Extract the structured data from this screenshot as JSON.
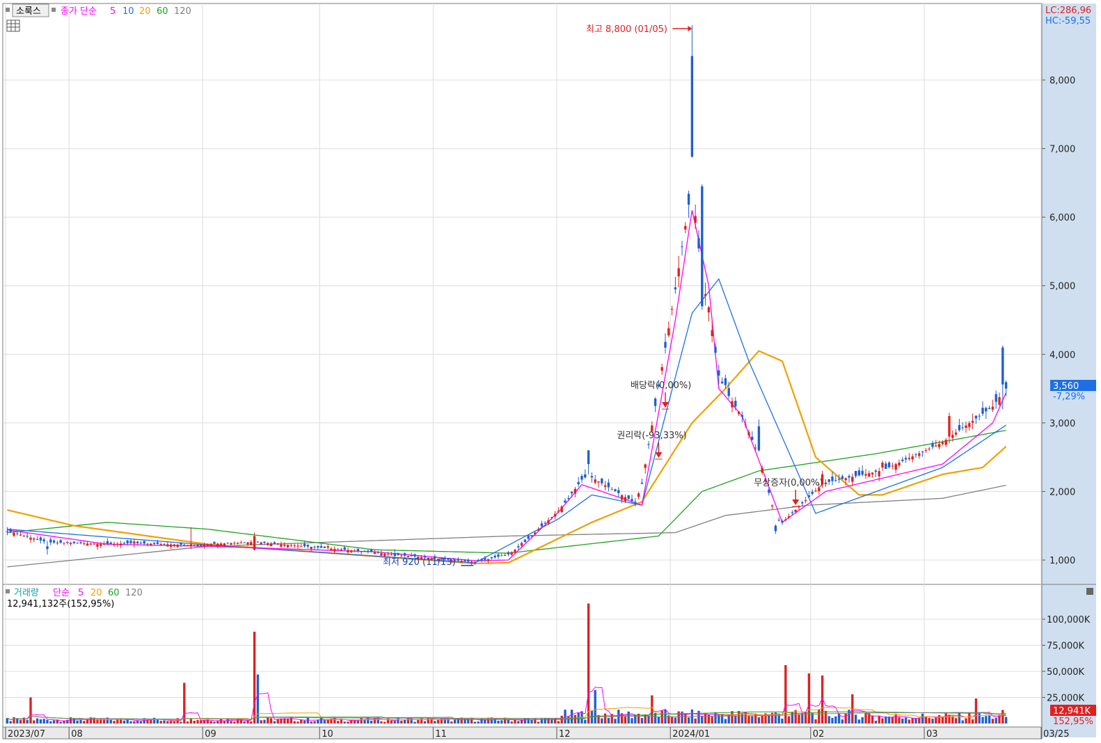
{
  "chart_data": {
    "type": "candlestick",
    "symbol_button": "소룩스",
    "legend": {
      "price_label": "종가 단순",
      "ma_periods": [
        "5",
        "10",
        "20",
        "60",
        "120"
      ],
      "ma_colors": [
        "#ff00ff",
        "#1e6fe6",
        "#f0a000",
        "#1fa31f",
        "#808080"
      ]
    },
    "lc_label": "LC:286,96",
    "hc_label": "HC:-59,55",
    "y_ticks": [
      {
        "value": 1000,
        "label": "1,000"
      },
      {
        "value": 2000,
        "label": "2,000"
      },
      {
        "value": 3000,
        "label": "3,000"
      },
      {
        "value": 4000,
        "label": "4,000"
      },
      {
        "value": 5000,
        "label": "5,000"
      },
      {
        "value": 6000,
        "label": "6,000"
      },
      {
        "value": 7000,
        "label": "7,000"
      },
      {
        "value": 8000,
        "label": "8,000"
      }
    ],
    "current_price": {
      "value": 3560,
      "label": "3,560",
      "change": "-7,29%"
    },
    "annotations": {
      "high": {
        "label": "최고 8,800 (01/05)",
        "value": 8800
      },
      "low": {
        "label": "최저 920 (11/13)",
        "value": 920
      },
      "events": [
        {
          "label": "배당락(0,00%)",
          "bar": 197
        },
        {
          "label": "권리락(-93,33%)",
          "bar": 195
        },
        {
          "label": "무상증자(0,00%)",
          "bar": 236
        }
      ]
    },
    "x_labels": [
      "2023/07",
      "08",
      "09",
      "10",
      "11",
      "12",
      "2024/01",
      "02",
      "03",
      "03/25"
    ],
    "x_label_bars": [
      0,
      19,
      59,
      94,
      128,
      165,
      199,
      241,
      275,
      310
    ],
    "bar_count": 300,
    "candles": [
      {
        "i": 0,
        "o": 1420,
        "h": 1480,
        "l": 1360,
        "c": 1410
      },
      {
        "i": 12,
        "o": 1200,
        "h": 1280,
        "l": 1080,
        "c": 1160
      },
      {
        "i": 38,
        "o": 1240,
        "h": 1310,
        "l": 1180,
        "c": 1270
      },
      {
        "i": 55,
        "o": 1200,
        "h": 1480,
        "l": 1160,
        "c": 1230
      },
      {
        "i": 74,
        "o": 1150,
        "h": 1400,
        "l": 1140,
        "c": 1350
      },
      {
        "i": 96,
        "o": 1180,
        "h": 1230,
        "l": 1150,
        "c": 1200
      },
      {
        "i": 116,
        "o": 1100,
        "h": 1160,
        "l": 1040,
        "c": 1060
      },
      {
        "i": 140,
        "o": 960,
        "h": 990,
        "l": 930,
        "c": 950
      },
      {
        "i": 154,
        "o": 1210,
        "h": 1270,
        "l": 1180,
        "c": 1250
      },
      {
        "i": 166,
        "o": 1700,
        "h": 1800,
        "l": 1680,
        "c": 1780
      },
      {
        "i": 174,
        "o": 2600,
        "h": 2600,
        "l": 2250,
        "c": 2400
      },
      {
        "i": 188,
        "o": 1850,
        "h": 1900,
        "l": 1780,
        "c": 1830
      },
      {
        "i": 205,
        "o": 8350,
        "h": 8800,
        "l": 6870,
        "c": 6880
      },
      {
        "i": 208,
        "o": 6450,
        "h": 6480,
        "l": 4650,
        "c": 4700
      },
      {
        "i": 215,
        "o": 3650,
        "h": 3700,
        "l": 3500,
        "c": 3550
      },
      {
        "i": 225,
        "o": 2950,
        "h": 3050,
        "l": 2580,
        "c": 2600
      },
      {
        "i": 230,
        "o": 1500,
        "h": 1520,
        "l": 1380,
        "c": 1420
      },
      {
        "i": 244,
        "o": 2100,
        "h": 2300,
        "l": 2050,
        "c": 2250
      },
      {
        "i": 262,
        "o": 2350,
        "h": 2450,
        "l": 2300,
        "c": 2420
      },
      {
        "i": 282,
        "o": 2800,
        "h": 3150,
        "l": 2700,
        "c": 3100
      },
      {
        "i": 298,
        "o": 4100,
        "h": 4130,
        "l": 3200,
        "c": 3560
      }
    ],
    "ma_keypoints": {
      "ma5": [
        [
          0,
          1440
        ],
        [
          30,
          1230
        ],
        [
          60,
          1200
        ],
        [
          110,
          1120
        ],
        [
          140,
          990
        ],
        [
          150,
          1000
        ],
        [
          165,
          1700
        ],
        [
          172,
          2100
        ],
        [
          190,
          1800
        ],
        [
          200,
          4500
        ],
        [
          205,
          6100
        ],
        [
          210,
          5000
        ],
        [
          213,
          3500
        ],
        [
          220,
          3100
        ],
        [
          232,
          1550
        ],
        [
          245,
          2000
        ],
        [
          280,
          2400
        ],
        [
          295,
          3000
        ],
        [
          300,
          3550
        ]
      ],
      "ma10": [
        [
          0,
          1450
        ],
        [
          60,
          1220
        ],
        [
          140,
          960
        ],
        [
          165,
          1600
        ],
        [
          175,
          1950
        ],
        [
          190,
          1800
        ],
        [
          205,
          4600
        ],
        [
          213,
          5100
        ],
        [
          222,
          3900
        ],
        [
          242,
          1680
        ],
        [
          280,
          2350
        ],
        [
          300,
          3000
        ]
      ],
      "ma20": [
        [
          0,
          1730
        ],
        [
          20,
          1500
        ],
        [
          60,
          1230
        ],
        [
          140,
          950
        ],
        [
          150,
          960
        ],
        [
          175,
          1550
        ],
        [
          190,
          1850
        ],
        [
          205,
          3000
        ],
        [
          215,
          3500
        ],
        [
          225,
          4050
        ],
        [
          232,
          3900
        ],
        [
          242,
          2500
        ],
        [
          255,
          1950
        ],
        [
          262,
          1950
        ],
        [
          280,
          2250
        ],
        [
          292,
          2350
        ],
        [
          300,
          2700
        ]
      ],
      "ma60": [
        [
          0,
          1400
        ],
        [
          30,
          1550
        ],
        [
          60,
          1450
        ],
        [
          110,
          1150
        ],
        [
          150,
          1100
        ],
        [
          195,
          1350
        ],
        [
          208,
          2000
        ],
        [
          225,
          2300
        ],
        [
          260,
          2550
        ],
        [
          300,
          2900
        ]
      ],
      "ma120": [
        [
          0,
          900
        ],
        [
          60,
          1200
        ],
        [
          150,
          1350
        ],
        [
          200,
          1400
        ],
        [
          215,
          1650
        ],
        [
          240,
          1800
        ],
        [
          280,
          1900
        ],
        [
          300,
          2100
        ]
      ]
    },
    "volume": {
      "label": "거래량",
      "ma_label": "단순",
      "ma_periods": [
        "5",
        "20",
        "60",
        "120"
      ],
      "summary": "12,941,132주(152,95%)",
      "current_label": "12,941K",
      "current_pct": "152,95%",
      "y_ticks": [
        {
          "value": 25000,
          "label": "25,000K"
        },
        {
          "value": 50000,
          "label": "50,000K"
        },
        {
          "value": 75000,
          "label": "75,000K"
        },
        {
          "value": 100000,
          "label": "100,000K"
        }
      ],
      "spikes": [
        {
          "i": 7,
          "v": 25000,
          "up": true
        },
        {
          "i": 53,
          "v": 39000,
          "up": true
        },
        {
          "i": 74,
          "v": 88000,
          "up": true
        },
        {
          "i": 75,
          "v": 47000,
          "up": false
        },
        {
          "i": 174,
          "v": 115000,
          "up": true
        },
        {
          "i": 176,
          "v": 32000,
          "up": false
        },
        {
          "i": 193,
          "v": 27000,
          "up": true
        },
        {
          "i": 233,
          "v": 56000,
          "up": true
        },
        {
          "i": 240,
          "v": 48000,
          "up": true
        },
        {
          "i": 244,
          "v": 46000,
          "up": true
        },
        {
          "i": 253,
          "v": 28000,
          "up": true
        },
        {
          "i": 290,
          "v": 24000,
          "up": true
        },
        {
          "i": 298,
          "v": 12941,
          "up": true
        }
      ]
    }
  }
}
